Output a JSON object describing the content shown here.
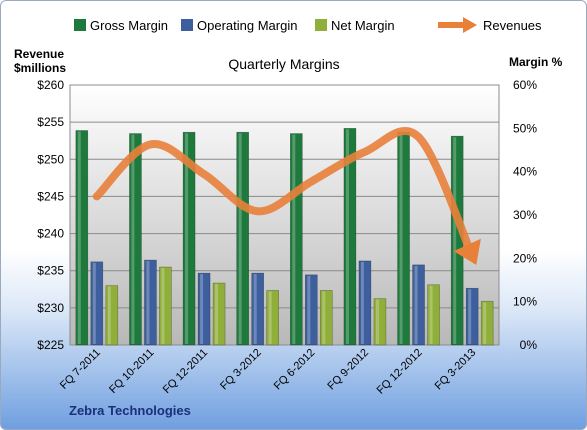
{
  "chart_data": {
    "type": "bar",
    "title": "Quarterly Margins",
    "footer": "Zebra Technologies",
    "left_axis_label": [
      "Revenue",
      "$millions"
    ],
    "right_axis_label": "Margin %",
    "categories": [
      "FQ 7-2011",
      "FQ 10-2011",
      "FQ 12-2011",
      "FQ 3-2012",
      "FQ 6-2012",
      "FQ 9-2012",
      "FQ 12-2012",
      "FQ 3-2013"
    ],
    "series": [
      {
        "name": "Gross Margin",
        "axis": "right",
        "kind": "bar",
        "color": "#1e7a3c",
        "values": [
          49.5,
          48.8,
          49.1,
          49.1,
          48.8,
          50.0,
          49.1,
          48.2
        ]
      },
      {
        "name": "Operating Margin",
        "axis": "right",
        "kind": "bar",
        "color": "#3d5f9e",
        "values": [
          19.2,
          19.6,
          16.6,
          16.6,
          16.2,
          19.4,
          18.5,
          13.1
        ]
      },
      {
        "name": "Net Margin",
        "axis": "right",
        "kind": "bar",
        "color": "#8fae3a",
        "values": [
          13.7,
          18.0,
          14.3,
          12.6,
          12.6,
          10.7,
          13.9,
          10.1
        ]
      },
      {
        "name": "Revenues",
        "axis": "left",
        "kind": "arrow",
        "color": "#e8803a",
        "values": [
          245,
          252,
          248,
          243,
          247,
          251,
          253,
          237
        ]
      }
    ],
    "left_axis": {
      "min": 225,
      "max": 260,
      "step": 5,
      "tick_labels": [
        "$225",
        "$230",
        "$235",
        "$240",
        "$245",
        "$250",
        "$255",
        "$260"
      ]
    },
    "right_axis": {
      "min": 0,
      "max": 60,
      "step": 10,
      "tick_labels": [
        "0%",
        "10%",
        "20%",
        "30%",
        "40%",
        "50%",
        "60%"
      ]
    },
    "grid": true,
    "legend_position": "top"
  }
}
